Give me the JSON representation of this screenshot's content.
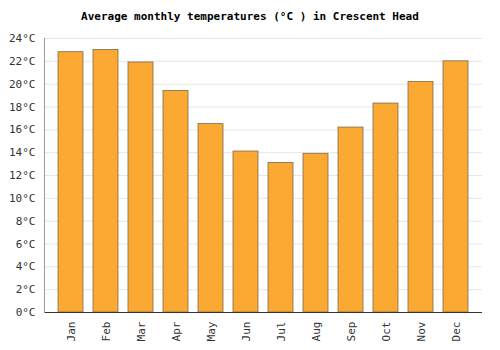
{
  "chart_data": {
    "type": "bar",
    "title": "Average monthly temperatures (°C ) in Crescent Head",
    "categories": [
      "Jan",
      "Feb",
      "Mar",
      "Apr",
      "May",
      "Jun",
      "Jul",
      "Aug",
      "Sep",
      "Oct",
      "Nov",
      "Dec"
    ],
    "values": [
      22.8,
      23.0,
      21.9,
      19.4,
      16.5,
      14.1,
      13.1,
      13.9,
      16.2,
      18.3,
      20.2,
      22.0
    ],
    "color": "#fca934",
    "ylim": [
      0,
      24
    ],
    "yticks": [
      {
        "value": 0,
        "label": "0°C"
      },
      {
        "value": 2,
        "label": "2°C"
      },
      {
        "value": 4,
        "label": "4°C"
      },
      {
        "value": 6,
        "label": "6°C"
      },
      {
        "value": 8,
        "label": "8°C"
      },
      {
        "value": 10,
        "label": "10°C"
      },
      {
        "value": 12,
        "label": "12°C"
      },
      {
        "value": 14,
        "label": "14°C"
      },
      {
        "value": 16,
        "label": "16°C"
      },
      {
        "value": 18,
        "label": "18°C"
      },
      {
        "value": 20,
        "label": "20°C"
      },
      {
        "value": 22,
        "label": "22°C"
      },
      {
        "value": 24,
        "label": "24°C"
      }
    ],
    "grid": true
  }
}
